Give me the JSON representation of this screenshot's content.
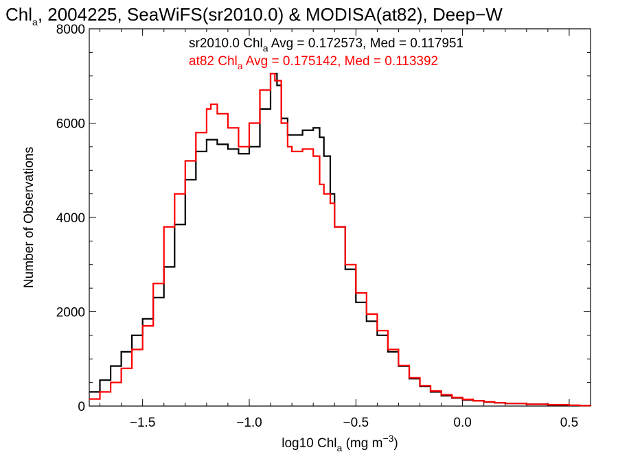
{
  "chart_data": {
    "type": "line",
    "title": {
      "prefix": "Chl",
      "sub": "a",
      "rest": ", 2004225, SeaWiFS(sr2010.0) & MODISA(at82), Deep−W"
    },
    "xlabel": {
      "prefix": "log10 Chl",
      "sub": "a",
      "rest": " (mg m",
      "sup": "−3",
      "close": ")"
    },
    "ylabel": "Number of Observations",
    "xlim": [
      -1.75,
      0.6
    ],
    "ylim": [
      0,
      8000
    ],
    "x_ticks": [
      -1.5,
      -1.0,
      -0.5,
      0.0,
      0.5
    ],
    "x_tick_labels": [
      "−1.5",
      "−1.0",
      "−0.5",
      "0.0",
      "0.5"
    ],
    "y_ticks": [
      0,
      2000,
      4000,
      6000,
      8000
    ],
    "y_tick_labels": [
      "0",
      "2000",
      "4000",
      "6000",
      "8000"
    ],
    "grid": false,
    "legend_position": "top-right",
    "series": [
      {
        "name": "sr2010.0",
        "color": "#000000",
        "legend": {
          "prefix": "sr2010.0 Chl",
          "sub": "a",
          "rest": " Avg = 0.172573, Med = 0.117951"
        },
        "x": [
          -1.75,
          -1.7,
          -1.65,
          -1.6,
          -1.55,
          -1.5,
          -1.45,
          -1.4,
          -1.35,
          -1.3,
          -1.25,
          -1.2,
          -1.15,
          -1.1,
          -1.05,
          -1.0,
          -0.95,
          -0.9,
          -0.87,
          -0.85,
          -0.82,
          -0.8,
          -0.75,
          -0.7,
          -0.67,
          -0.65,
          -0.62,
          -0.6,
          -0.55,
          -0.5,
          -0.45,
          -0.4,
          -0.35,
          -0.3,
          -0.25,
          -0.2,
          -0.15,
          -0.1,
          -0.05,
          0.0,
          0.05,
          0.1,
          0.15,
          0.2,
          0.3,
          0.4,
          0.5,
          0.55,
          0.6
        ],
        "y": [
          300,
          550,
          850,
          1150,
          1500,
          1850,
          2300,
          2950,
          3850,
          4800,
          5400,
          5650,
          5550,
          5450,
          5350,
          5500,
          6300,
          7050,
          6800,
          6100,
          5750,
          5750,
          5850,
          5900,
          5700,
          5300,
          4500,
          3800,
          2900,
          2200,
          1800,
          1500,
          1150,
          850,
          580,
          420,
          300,
          220,
          170,
          130,
          110,
          85,
          70,
          55,
          40,
          25,
          15,
          10,
          5
        ]
      },
      {
        "name": "at82",
        "color": "#ff0000",
        "legend": {
          "prefix": "at82 Chl",
          "sub": "a",
          "rest": " Avg = 0.175142, Med = 0.113392"
        },
        "x": [
          -1.75,
          -1.7,
          -1.65,
          -1.6,
          -1.55,
          -1.5,
          -1.45,
          -1.4,
          -1.35,
          -1.3,
          -1.25,
          -1.2,
          -1.18,
          -1.15,
          -1.1,
          -1.05,
          -1.0,
          -0.95,
          -0.9,
          -0.88,
          -0.85,
          -0.82,
          -0.8,
          -0.75,
          -0.7,
          -0.67,
          -0.65,
          -0.62,
          -0.6,
          -0.55,
          -0.5,
          -0.45,
          -0.4,
          -0.35,
          -0.3,
          -0.25,
          -0.2,
          -0.15,
          -0.1,
          -0.05,
          0.0,
          0.05,
          0.1,
          0.15,
          0.2,
          0.3,
          0.4,
          0.5,
          0.55,
          0.6
        ],
        "y": [
          150,
          300,
          500,
          800,
          1200,
          1700,
          2600,
          3800,
          4500,
          5200,
          5800,
          6300,
          6400,
          6200,
          5900,
          5500,
          6000,
          6700,
          7050,
          6900,
          6000,
          5500,
          5400,
          5450,
          5300,
          4700,
          4500,
          4300,
          3800,
          3000,
          2400,
          1950,
          1600,
          1200,
          860,
          600,
          430,
          320,
          240,
          180,
          140,
          110,
          90,
          70,
          55,
          40,
          28,
          18,
          10,
          5
        ]
      }
    ]
  }
}
